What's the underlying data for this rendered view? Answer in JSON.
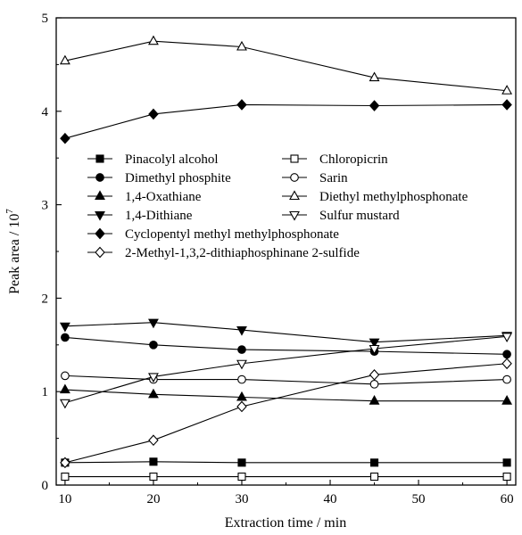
{
  "chart_data": {
    "type": "line",
    "title": "",
    "xlabel": "Extraction time / min",
    "ylabel": "Peak area / 10",
    "ylabel_exponent": "7",
    "xlim": [
      9,
      61
    ],
    "ylim": [
      0,
      5
    ],
    "xticks": [
      "10",
      "20",
      "30",
      "40",
      "50",
      "60"
    ],
    "yticks": [
      "0",
      "1",
      "2",
      "3",
      "4",
      "5"
    ],
    "x": [
      10,
      20,
      30,
      45,
      60
    ],
    "legend_position": "center-left",
    "series": [
      {
        "name": "Pinacolyl alcohol",
        "marker": "square",
        "filled": true,
        "values": [
          0.24,
          0.25,
          0.24,
          0.24,
          0.24
        ]
      },
      {
        "name": "Chloropicrin",
        "marker": "square",
        "filled": false,
        "values": [
          0.09,
          0.09,
          0.09,
          0.09,
          0.09
        ]
      },
      {
        "name": "Dimethyl phosphite",
        "marker": "circle",
        "filled": true,
        "values": [
          1.58,
          1.5,
          1.45,
          1.43,
          1.4
        ]
      },
      {
        "name": "Sarin",
        "marker": "circle",
        "filled": false,
        "values": [
          1.17,
          1.13,
          1.13,
          1.08,
          1.13
        ]
      },
      {
        "name": "1,4-Oxathiane",
        "marker": "triangle-up",
        "filled": true,
        "values": [
          1.02,
          0.97,
          0.94,
          0.9,
          0.9
        ]
      },
      {
        "name": "Diethyl methylphosphonate",
        "marker": "triangle-up",
        "filled": false,
        "values": [
          4.54,
          4.75,
          4.69,
          4.36,
          4.22
        ]
      },
      {
        "name": "1,4-Dithiane",
        "marker": "triangle-down",
        "filled": true,
        "values": [
          1.7,
          1.74,
          1.66,
          1.53,
          1.6
        ]
      },
      {
        "name": "Sulfur mustard",
        "marker": "triangle-down",
        "filled": false,
        "values": [
          0.88,
          1.16,
          1.3,
          1.46,
          1.59
        ]
      },
      {
        "name": "Cyclopentyl methyl methylphosphonate",
        "marker": "diamond",
        "filled": true,
        "values": [
          3.71,
          3.97,
          4.07,
          4.06,
          4.07
        ]
      },
      {
        "name": "2-Methyl-1,3,2-dithiaphosphinane 2-sulfide",
        "marker": "diamond",
        "filled": false,
        "values": [
          0.24,
          0.48,
          0.84,
          1.18,
          1.3
        ]
      }
    ]
  }
}
